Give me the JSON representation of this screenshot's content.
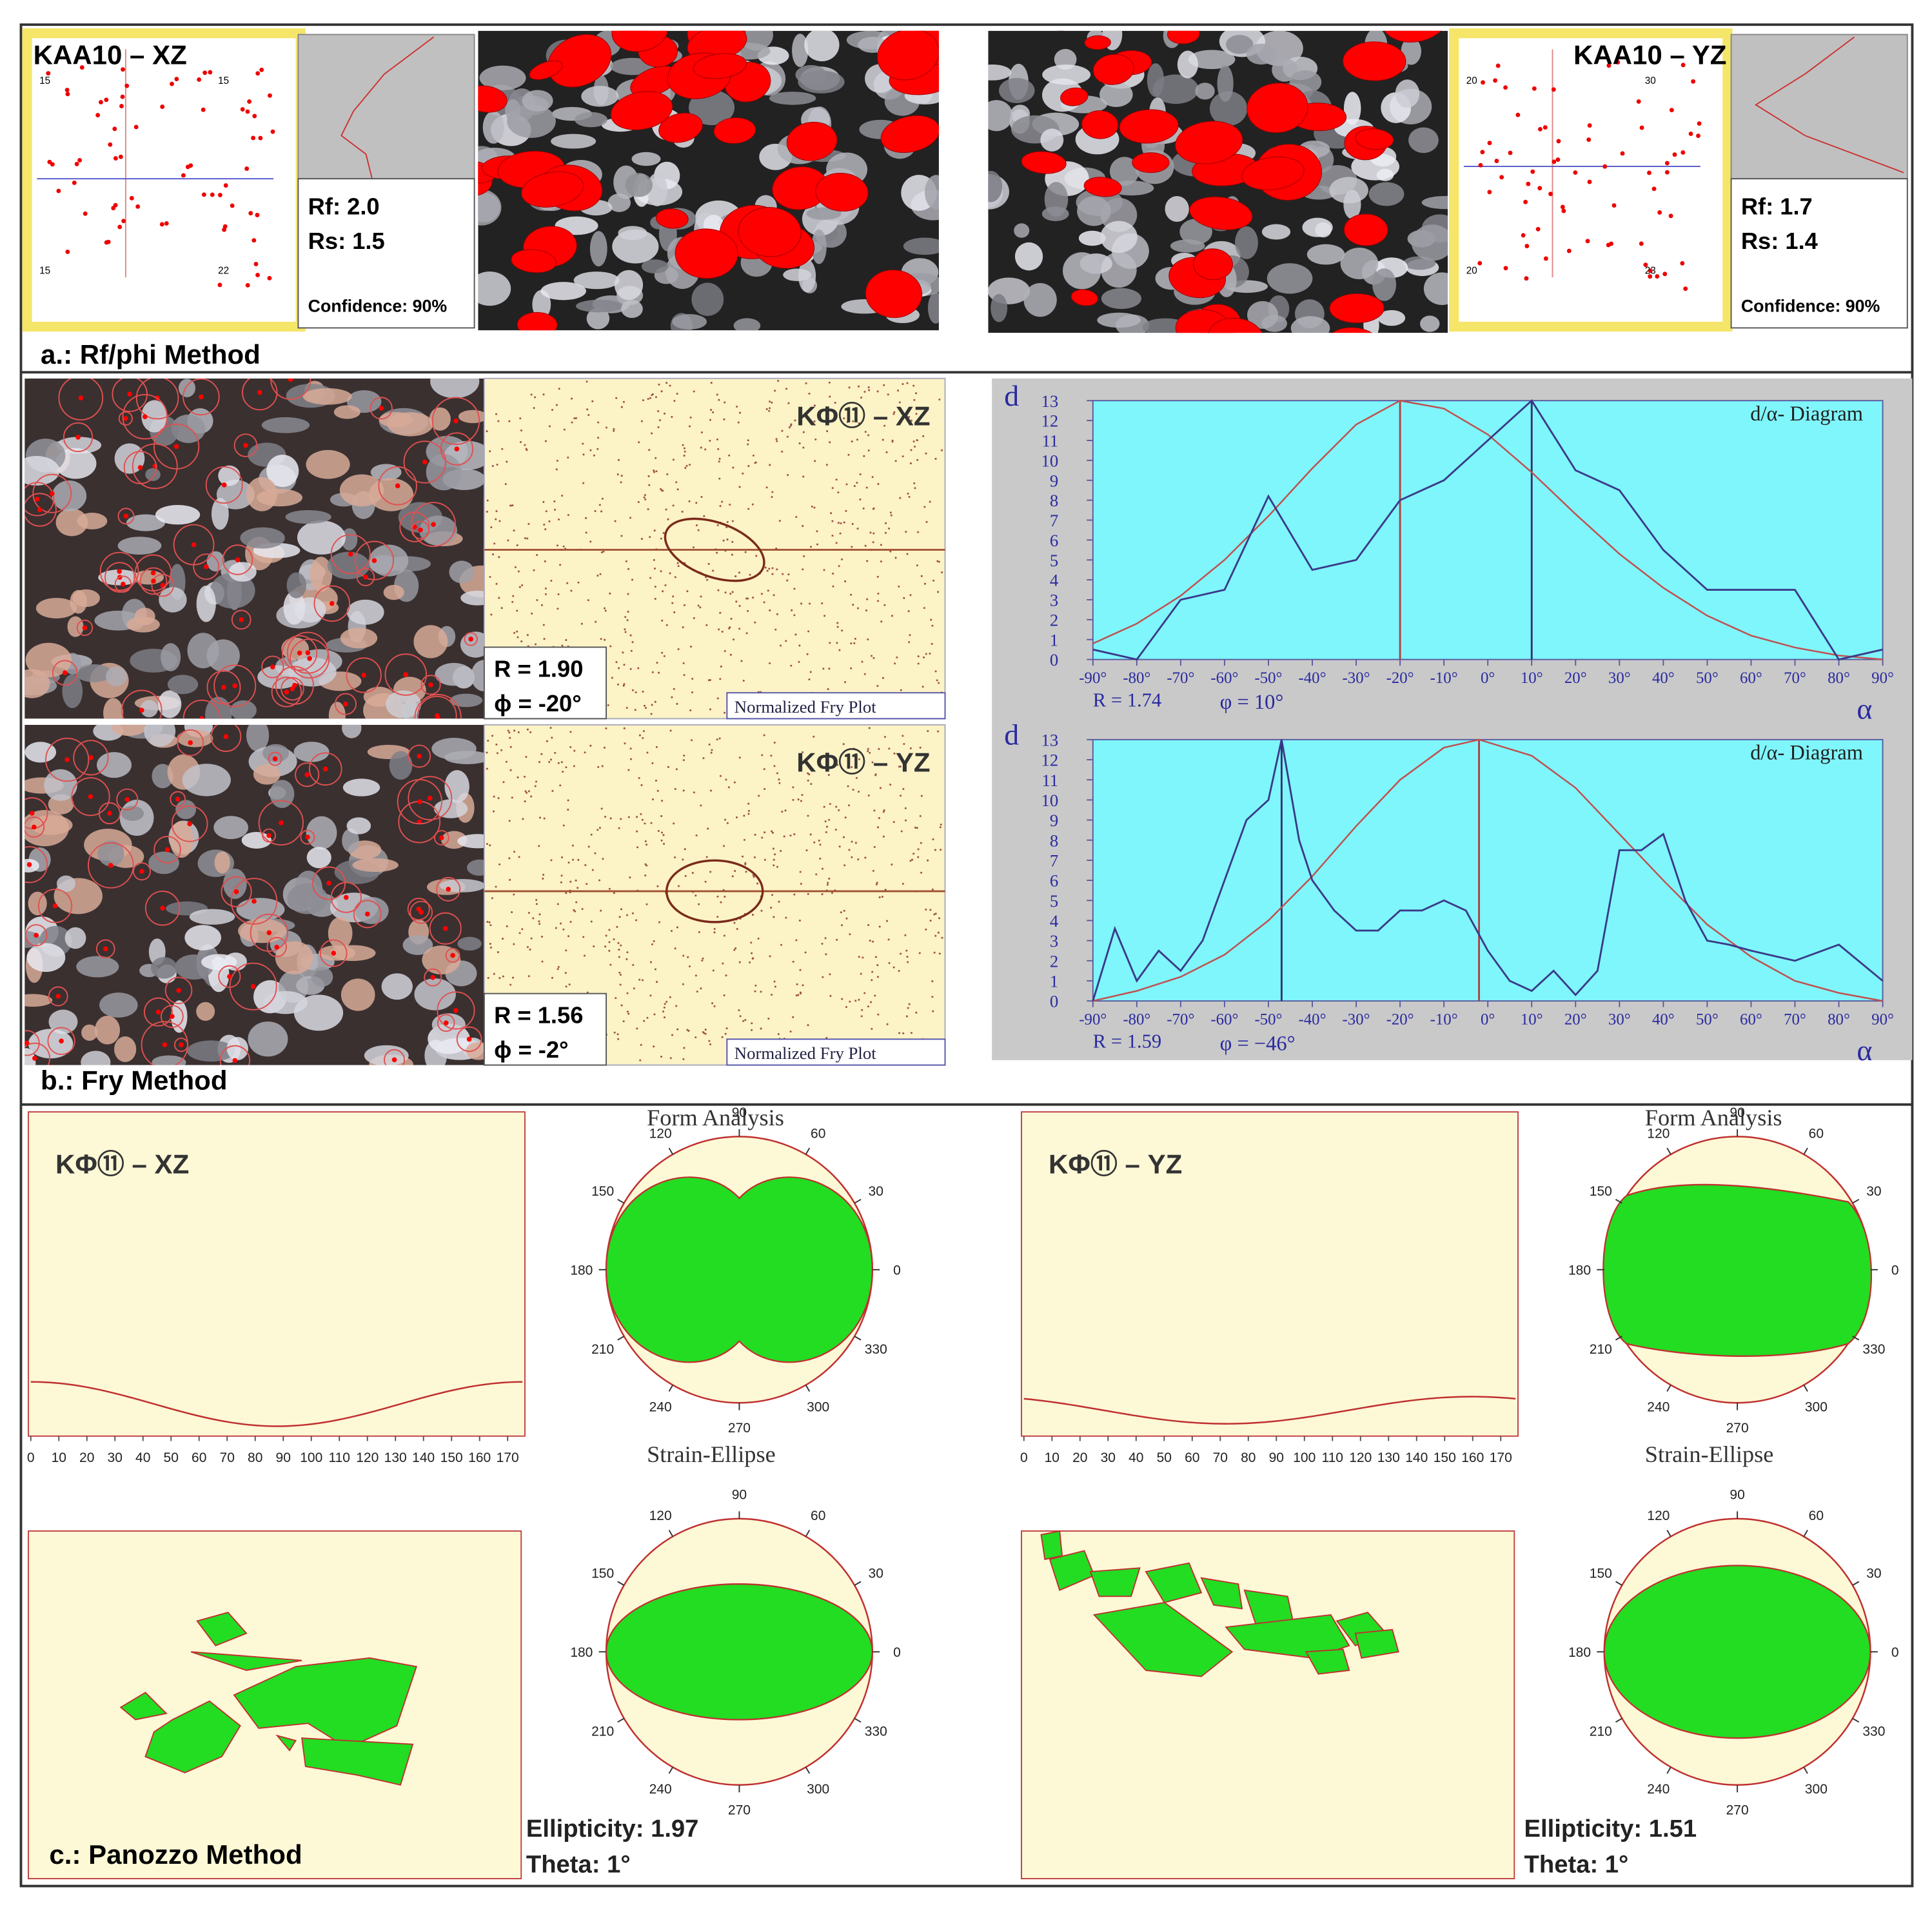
{
  "panel_a": {
    "label": "a.: Rf/phi Method",
    "samples": [
      {
        "title": "KAA10 – XZ",
        "rf": "Rf: 2.0",
        "rs": "Rs: 1.5",
        "confidence": "Confidence: 90%",
        "corner_labels": [
          "15",
          "15",
          "15",
          "22"
        ]
      },
      {
        "title": "KAA10 – YZ",
        "rf": "Rf: 1.7",
        "rs": "Rs: 1.4",
        "confidence": "Confidence: 90%",
        "corner_labels": [
          "20",
          "30",
          "20",
          "23"
        ]
      }
    ]
  },
  "panel_b": {
    "label": "b.: Fry Method",
    "fry": [
      {
        "title": "KΦ⑪ – XZ",
        "r": "R = 1.90",
        "phi": "ϕ = -20°",
        "caption": "Normalized Fry Plot"
      },
      {
        "title": "KΦ⑪ – YZ",
        "r": "R = 1.56",
        "phi": "ϕ = -2°",
        "caption": "Normalized Fry Plot"
      }
    ],
    "diagrams": [
      {
        "title": "d/α- Diagram",
        "y_label": "d",
        "x_label": "α",
        "r": "R = 1.74",
        "phi": "φ = 10°",
        "ylim": [
          0,
          13
        ],
        "yticks": [
          0,
          1,
          2,
          3,
          4,
          5,
          6,
          7,
          8,
          9,
          10,
          11,
          12,
          13
        ],
        "xlim": [
          -90,
          90
        ],
        "xticks": [
          {
            "value": -90,
            "label": "-90°"
          },
          {
            "value": -80,
            "label": "-80°"
          },
          {
            "value": -70,
            "label": "-70°"
          },
          {
            "value": -60,
            "label": "-60°"
          },
          {
            "value": -50,
            "label": "-50°"
          },
          {
            "value": -40,
            "label": "-40°"
          },
          {
            "value": -30,
            "label": "-30°"
          },
          {
            "value": -20,
            "label": "-20°"
          },
          {
            "value": -10,
            "label": "-10°"
          },
          {
            "value": 0,
            "label": "0°"
          },
          {
            "value": 10,
            "label": "10°"
          },
          {
            "value": 20,
            "label": "20°"
          },
          {
            "value": 30,
            "label": "30°"
          },
          {
            "value": 40,
            "label": "40°"
          },
          {
            "value": 50,
            "label": "50°"
          },
          {
            "value": 60,
            "label": "60°"
          },
          {
            "value": 70,
            "label": "70°"
          },
          {
            "value": 80,
            "label": "80°"
          },
          {
            "value": 90,
            "label": "90°"
          }
        ],
        "alpha": [
          -90,
          -80,
          -70,
          -60,
          -50,
          -40,
          -30,
          -20,
          -10,
          0,
          10,
          20,
          30,
          40,
          50,
          60,
          70,
          80,
          90
        ],
        "d": [
          0.5,
          0,
          3,
          3.5,
          8.2,
          4.5,
          5,
          8,
          9,
          11,
          13,
          9.5,
          8.5,
          5.5,
          3.5,
          3.5,
          3.5,
          0,
          0.5
        ],
        "fit_alpha": [
          -90,
          -80,
          -70,
          -60,
          -50,
          -40,
          -30,
          -20,
          -10,
          0,
          10,
          20,
          30,
          40,
          50,
          60,
          70,
          80,
          90
        ],
        "fit": [
          0.8,
          1.8,
          3.2,
          5,
          7.2,
          9.6,
          11.8,
          13,
          12.6,
          11.3,
          9.4,
          7.3,
          5.3,
          3.6,
          2.2,
          1.2,
          0.6,
          0.2,
          0
        ],
        "fit_peak": -20,
        "data_peak": 10
      },
      {
        "title": "d/α- Diagram",
        "y_label": "d",
        "x_label": "α",
        "r": "R = 1.59",
        "phi": "φ = −46°",
        "ylim": [
          0,
          13
        ],
        "yticks": [
          0,
          1,
          2,
          3,
          4,
          5,
          6,
          7,
          8,
          9,
          10,
          11,
          12,
          13
        ],
        "xlim": [
          -90,
          90
        ],
        "xticks": [
          {
            "value": -90,
            "label": "-90°"
          },
          {
            "value": -80,
            "label": "-80°"
          },
          {
            "value": -70,
            "label": "-70°"
          },
          {
            "value": -60,
            "label": "-60°"
          },
          {
            "value": -50,
            "label": "-50°"
          },
          {
            "value": -40,
            "label": "-40°"
          },
          {
            "value": -30,
            "label": "-30°"
          },
          {
            "value": -20,
            "label": "-20°"
          },
          {
            "value": -10,
            "label": "-10°"
          },
          {
            "value": 0,
            "label": "0°"
          },
          {
            "value": 10,
            "label": "10°"
          },
          {
            "value": 20,
            "label": "20°"
          },
          {
            "value": 30,
            "label": "30°"
          },
          {
            "value": 40,
            "label": "40°"
          },
          {
            "value": 50,
            "label": "50°"
          },
          {
            "value": 60,
            "label": "60°"
          },
          {
            "value": 70,
            "label": "70°"
          },
          {
            "value": 80,
            "label": "80°"
          },
          {
            "value": 90,
            "label": "90°"
          }
        ],
        "alpha": [
          -90,
          -85,
          -80,
          -75,
          -70,
          -65,
          -60,
          -55,
          -50,
          -47,
          -43,
          -40,
          -35,
          -30,
          -25,
          -20,
          -15,
          -10,
          -5,
          0,
          5,
          10,
          15,
          20,
          25,
          30,
          35,
          40,
          45,
          50,
          55,
          60,
          70,
          80,
          90
        ],
        "d": [
          0,
          3.6,
          1,
          2.5,
          1.5,
          3,
          6,
          9,
          10,
          13,
          8,
          6,
          4.5,
          3.5,
          3.5,
          4.5,
          4.5,
          5,
          4.5,
          2.5,
          1,
          0.5,
          1.5,
          0.3,
          1.5,
          7.5,
          7.5,
          8.3,
          5,
          3,
          2.8,
          2.5,
          2,
          2.8,
          1
        ],
        "fit_alpha": [
          -90,
          -80,
          -70,
          -60,
          -50,
          -40,
          -30,
          -20,
          -10,
          -2,
          10,
          20,
          30,
          40,
          50,
          60,
          70,
          80,
          90
        ],
        "fit": [
          0,
          0.5,
          1.2,
          2.3,
          4,
          6.2,
          8.7,
          11,
          12.6,
          13,
          12.2,
          10.6,
          8.3,
          6,
          3.8,
          2.2,
          1,
          0.4,
          0
        ],
        "fit_peak": -2,
        "data_peak": -47
      }
    ]
  },
  "panel_c": {
    "label": "c.: Panozzo Method",
    "samples": [
      {
        "title": "KΦ⑪ – XZ",
        "form_title": "Form Analysis",
        "ellipse_title": "Strain-Ellipse",
        "ellipticity": "Ellipticity: 1.97",
        "theta": "Theta: 1°",
        "xticks": [
          0,
          10,
          20,
          30,
          40,
          50,
          60,
          70,
          80,
          90,
          100,
          110,
          120,
          130,
          140,
          150,
          160,
          170
        ],
        "angle_labels": [
          0,
          30,
          60,
          90,
          120,
          150,
          180,
          210,
          240,
          270,
          300,
          330
        ]
      },
      {
        "title": "KΦ⑪ – YZ",
        "form_title": "Form Analysis",
        "ellipse_title": "Strain-Ellipse",
        "ellipticity": "Ellipticity: 1.51",
        "theta": "Theta: 1°",
        "xticks": [
          0,
          10,
          20,
          30,
          40,
          50,
          60,
          70,
          80,
          90,
          100,
          110,
          120,
          130,
          140,
          150,
          160,
          170
        ],
        "angle_labels": [
          0,
          30,
          60,
          90,
          120,
          150,
          180,
          210,
          240,
          270,
          300,
          330
        ]
      }
    ]
  }
}
